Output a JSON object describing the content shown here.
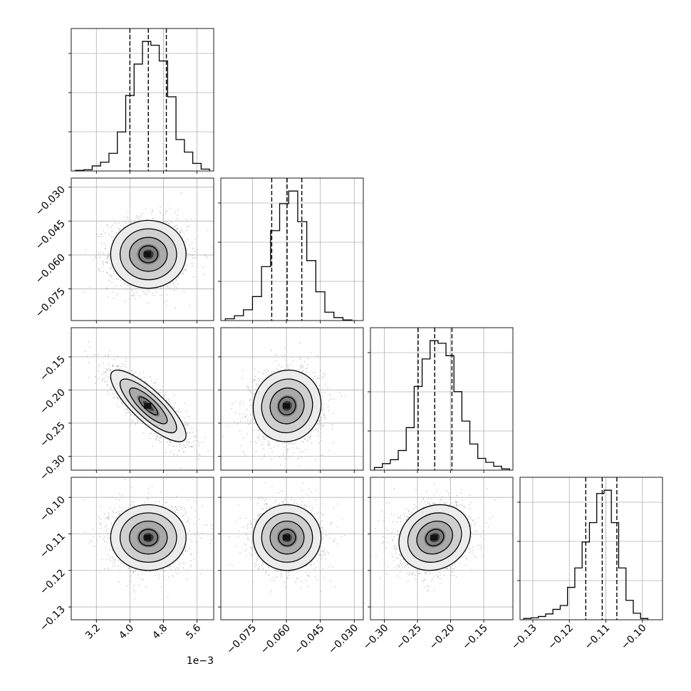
{
  "chart_data": {
    "type": "corner",
    "description_free": true,
    "params": [
      {
        "id": "p0",
        "range": [
          2.6,
          6.0
        ],
        "ticks": [
          3.2,
          4.0,
          4.8,
          5.6
        ],
        "tick_labels": [
          "3.2",
          "4.0",
          "4.8",
          "5.6"
        ],
        "offset_label": "1e−3",
        "quantiles": [
          4.0,
          4.44,
          4.87
        ]
      },
      {
        "id": "p1",
        "range": [
          -0.089,
          -0.026
        ],
        "ticks": [
          -0.075,
          -0.06,
          -0.045,
          -0.03
        ],
        "tick_labels": [
          "−0.075",
          "−0.060",
          "−0.045",
          "−0.030"
        ],
        "quantiles": [
          -0.0665,
          -0.0597,
          -0.0532
        ]
      },
      {
        "id": "p2",
        "range": [
          -0.321,
          -0.106
        ],
        "ticks": [
          -0.3,
          -0.25,
          -0.2,
          -0.15
        ],
        "tick_labels": [
          "−0.30",
          "−0.25",
          "−0.20",
          "−0.15"
        ],
        "quantiles": [
          -0.249,
          -0.224,
          -0.198
        ]
      },
      {
        "id": "p3",
        "range": [
          -0.1335,
          -0.0945
        ],
        "ticks": [
          -0.13,
          -0.12,
          -0.11,
          -0.1
        ],
        "tick_labels": [
          "−0.13",
          "−0.12",
          "−0.11",
          "−0.10"
        ],
        "quantiles": [
          -0.1155,
          -0.111,
          -0.107
        ]
      }
    ],
    "histograms": [
      {
        "param": "p0",
        "bins": [
          2.7,
          2.9,
          3.1,
          3.3,
          3.5,
          3.7,
          3.9,
          4.1,
          4.3,
          4.5,
          4.7,
          4.9,
          5.1,
          5.3,
          5.5,
          5.7,
          5.9
        ],
        "counts": [
          1,
          2,
          8,
          14,
          28,
          62,
          120,
          170,
          206,
          200,
          175,
          118,
          50,
          30,
          12,
          3
        ]
      },
      {
        "param": "p1",
        "bins": [
          -0.087,
          -0.083,
          -0.079,
          -0.075,
          -0.071,
          -0.067,
          -0.063,
          -0.059,
          -0.055,
          -0.051,
          -0.047,
          -0.043,
          -0.039,
          -0.035,
          -0.031
        ],
        "counts": [
          3,
          8,
          18,
          40,
          90,
          150,
          195,
          216,
          165,
          100,
          48,
          14,
          5,
          1
        ]
      },
      {
        "param": "p2",
        "bins": [
          -0.315,
          -0.303,
          -0.291,
          -0.279,
          -0.267,
          -0.255,
          -0.243,
          -0.231,
          -0.219,
          -0.207,
          -0.195,
          -0.183,
          -0.171,
          -0.159,
          -0.147,
          -0.135,
          -0.123,
          -0.111
        ],
        "counts": [
          4,
          10,
          16,
          30,
          65,
          128,
          170,
          198,
          194,
          175,
          120,
          75,
          40,
          18,
          12,
          6,
          2
        ]
      },
      {
        "param": "p3",
        "bins": [
          -0.1325,
          -0.1305,
          -0.1285,
          -0.1265,
          -0.1245,
          -0.1225,
          -0.1205,
          -0.1185,
          -0.1165,
          -0.1145,
          -0.1125,
          -0.1105,
          -0.1085,
          -0.1065,
          -0.1045,
          -0.1025,
          -0.1005,
          -0.0985
        ],
        "counts": [
          2,
          3,
          5,
          9,
          16,
          22,
          50,
          80,
          120,
          150,
          195,
          200,
          150,
          80,
          30,
          10,
          2
        ]
      }
    ],
    "scatter_panels": [
      {
        "x": "p0",
        "y": "p1",
        "mean": [
          4.44,
          -0.0597
        ],
        "sd": [
          0.45,
          0.0075
        ],
        "corr": 0.0
      },
      {
        "x": "p0",
        "y": "p2",
        "mean": [
          4.44,
          -0.224
        ],
        "sd": [
          0.45,
          0.027
        ],
        "corr": -0.82
      },
      {
        "x": "p1",
        "y": "p2",
        "mean": [
          -0.0597,
          -0.224
        ],
        "sd": [
          0.0075,
          0.027
        ],
        "corr": 0.05
      },
      {
        "x": "p0",
        "y": "p3",
        "mean": [
          4.44,
          -0.111
        ],
        "sd": [
          0.45,
          0.0045
        ],
        "corr": 0.0
      },
      {
        "x": "p1",
        "y": "p3",
        "mean": [
          -0.0597,
          -0.111
        ],
        "sd": [
          0.0075,
          0.0045
        ],
        "corr": 0.0
      },
      {
        "x": "p2",
        "y": "p3",
        "mean": [
          -0.224,
          -0.111
        ],
        "sd": [
          0.027,
          0.0045
        ],
        "corr": 0.15
      }
    ],
    "grid": true,
    "colors": {
      "line": "#000000",
      "scatter": "#a8a8a8",
      "grid": "#b0b0b0",
      "density_dark": "#111111"
    }
  }
}
